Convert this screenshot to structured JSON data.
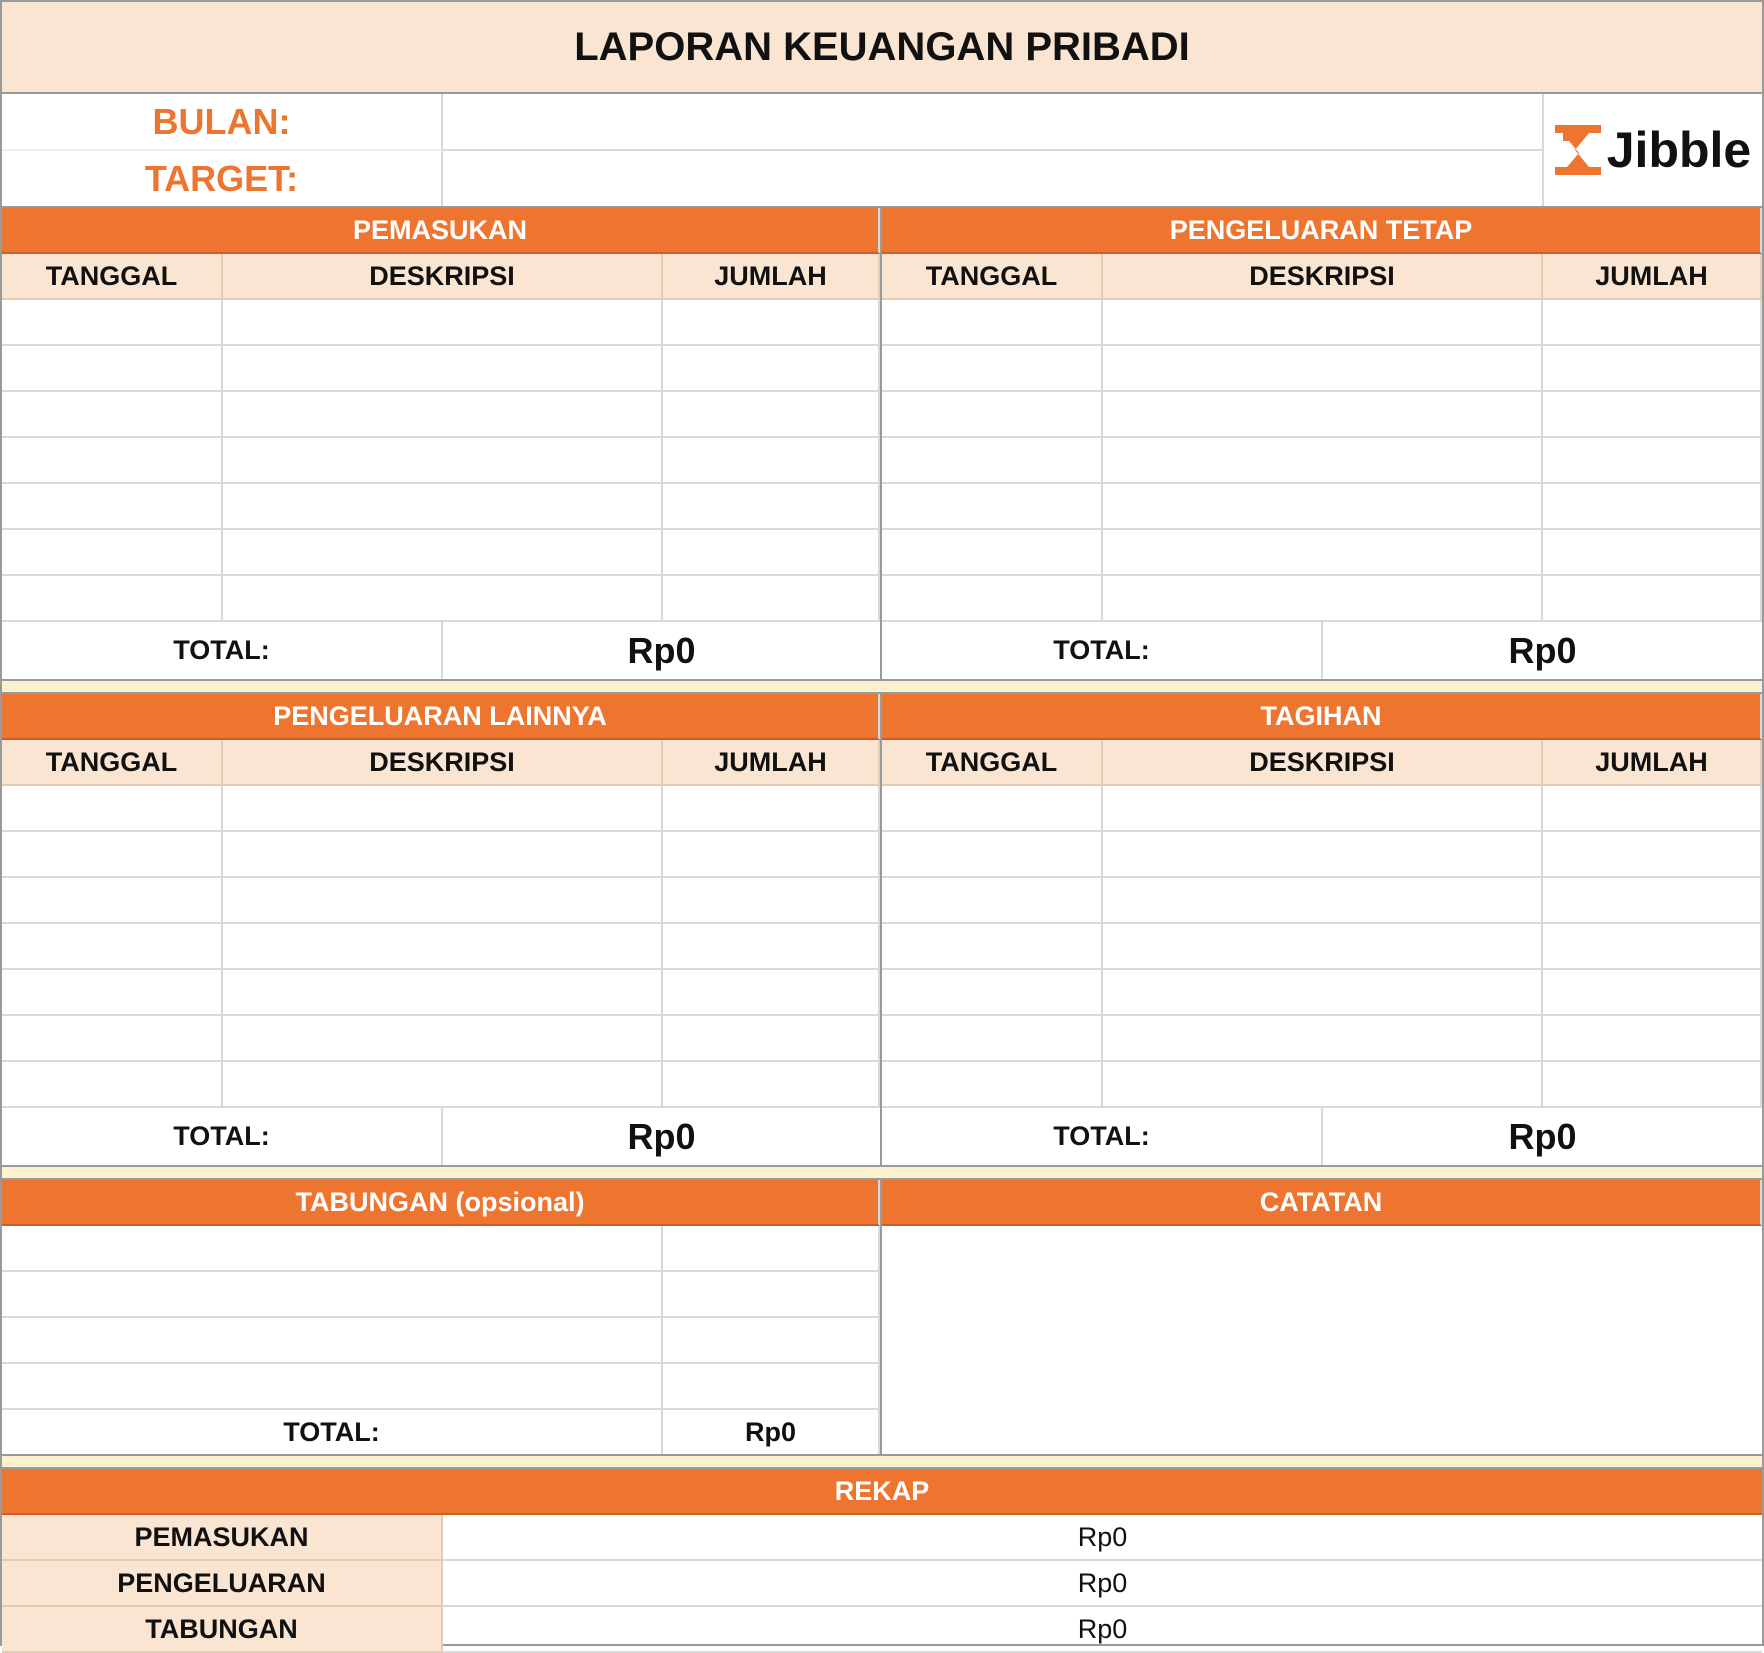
{
  "title": "LAPORAN KEUANGAN PRIBADI",
  "header": {
    "bulan_label": "BULAN:",
    "target_label": "TARGET:",
    "bulan_value": "",
    "target_value": "",
    "logo_text": "Jibble"
  },
  "columns": {
    "tanggal": "TANGGAL",
    "deskripsi": "DESKRIPSI",
    "jumlah": "JUMLAH"
  },
  "sections": [
    {
      "title": "PEMASUKAN",
      "total_label": "TOTAL:",
      "total_value": "Rp0"
    },
    {
      "title": "PENGELUARAN TETAP",
      "total_label": "TOTAL:",
      "total_value": "Rp0"
    },
    {
      "title": "PENGELUARAN LAINNYA",
      "total_label": "TOTAL:",
      "total_value": "Rp0"
    },
    {
      "title": "TAGIHAN",
      "total_label": "TOTAL:",
      "total_value": "Rp0"
    }
  ],
  "tabungan": {
    "title": "TABUNGAN (opsional)",
    "total_label": "TOTAL:",
    "total_value": "Rp0"
  },
  "catatan": {
    "title": "CATATAN"
  },
  "rekap": {
    "title": "REKAP",
    "rows": [
      {
        "label": "PEMASUKAN",
        "value": "Rp0"
      },
      {
        "label": "PENGELUARAN",
        "value": "Rp0"
      },
      {
        "label": "TABUNGAN",
        "value": "Rp0"
      }
    ]
  },
  "colors": {
    "accent": "#EE7530",
    "cream": "#F9E5D2",
    "spacer": "#FDF1D0"
  }
}
